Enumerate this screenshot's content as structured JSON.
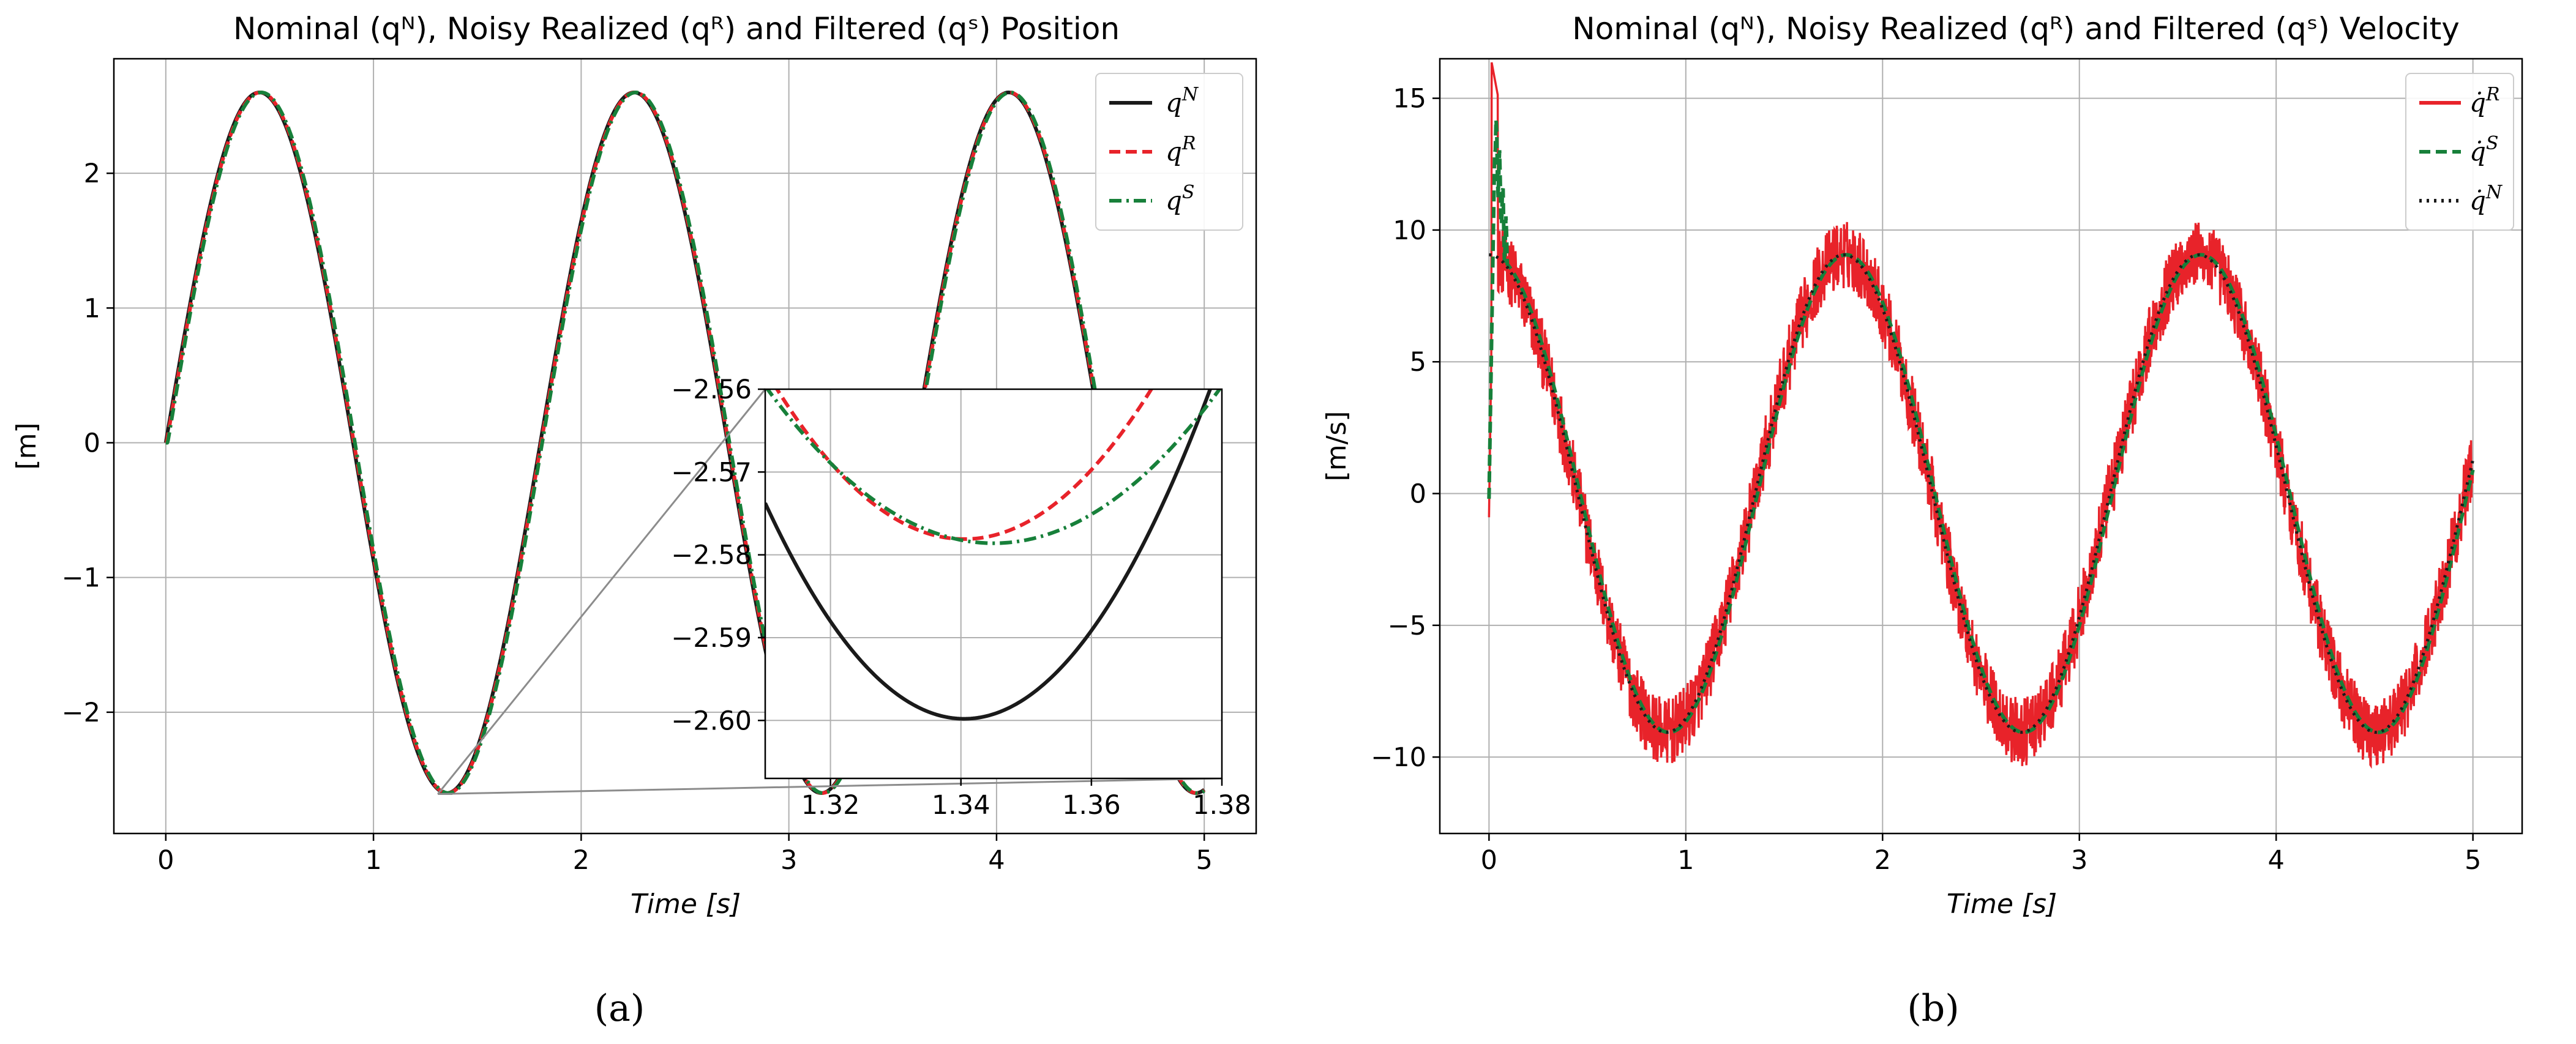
{
  "chart_data": [
    {
      "type": "line",
      "title": "Nominal (qᴺ), Noisy Realized (qᴿ) and  Filtered (qˢ) Position",
      "xlabel": "Time [s]",
      "ylabel": "[m]",
      "xlim": [
        -0.25,
        5.25
      ],
      "ylim": [
        -2.9,
        2.85
      ],
      "xticks": [
        0,
        1,
        2,
        3,
        4,
        5
      ],
      "xtick_labels": [
        "0",
        "1",
        "2",
        "3",
        "4",
        "5"
      ],
      "yticks": [
        2,
        1,
        0,
        -1,
        -2
      ],
      "ytick_labels": [
        "2",
        "1",
        "0",
        "−1",
        "−2"
      ],
      "grid": true,
      "legend_position": "top-right",
      "signal": {
        "function": "A*sin(2*pi*f*t)",
        "amplitude": 2.6,
        "frequency_hz": 0.5545,
        "t_end": 5.0
      },
      "series": [
        {
          "name": "qN",
          "label": "q",
          "sup": "N",
          "color": "#1a1a1a",
          "style": "solid"
        },
        {
          "name": "qR",
          "label": "q",
          "sup": "R",
          "color": "#e8232a",
          "style": "dashed"
        },
        {
          "name": "qS",
          "label": "q",
          "sup": "S",
          "color": "#17803a",
          "style": "dashdot"
        }
      ],
      "inset": {
        "xlim": [
          1.31,
          1.38
        ],
        "ylim": [
          -2.607,
          -2.56
        ],
        "xticks": [
          1.32,
          1.34,
          1.36,
          1.38
        ],
        "xtick_labels": [
          "1.32",
          "1.34",
          "1.36",
          "1.38"
        ],
        "yticks": [
          -2.56,
          -2.57,
          -2.58,
          -2.59,
          -2.6
        ],
        "ytick_labels": [
          "−2.56",
          "−2.57",
          "−2.58",
          "−2.59",
          "−2.60"
        ],
        "zoom_region": {
          "x": [
            1.31,
            1.38
          ],
          "y": [
            -2.607,
            -2.56
          ]
        },
        "curves": {
          "qN": {
            "vertex_x": 1.3405,
            "vertex_y": -2.5998,
            "curvature": 28.0
          },
          "qR": {
            "vertex_x": 1.3405,
            "vertex_y": -2.5781,
            "curvature": 22.0
          },
          "qS": {
            "vertex_x": 1.345,
            "vertex_y": -2.5786,
            "curvature": 15.5
          }
        }
      }
    },
    {
      "type": "line",
      "title": "Nominal (qᴺ), Noisy Realized (qᴿ) and  Filtered (qˢ) Velocity",
      "xlabel": "Time [s]",
      "ylabel": "[m/s]",
      "xlim": [
        -0.25,
        5.25
      ],
      "ylim": [
        -12.9,
        16.5
      ],
      "xticks": [
        0,
        1,
        2,
        3,
        4,
        5
      ],
      "xtick_labels": [
        "0",
        "1",
        "2",
        "3",
        "4",
        "5"
      ],
      "yticks": [
        15,
        10,
        5,
        0,
        -5,
        -10
      ],
      "ytick_labels": [
        "15",
        "10",
        "5",
        "0",
        "−5",
        "−10"
      ],
      "grid": true,
      "legend_position": "top-right",
      "signal": {
        "function": "A*cos(2*pi*f*t)",
        "amplitude": 9.06,
        "frequency_hz": 0.5545,
        "t_end": 5.0,
        "noise_amplitude": 1.3,
        "initial_spike_peak": 15.3
      },
      "series": [
        {
          "name": "qRdot",
          "label": "q̇",
          "sup": "R",
          "color": "#e8232a",
          "style": "solid"
        },
        {
          "name": "qSdot",
          "label": "q̇",
          "sup": "S",
          "color": "#17803a",
          "style": "dashed"
        },
        {
          "name": "qNdot",
          "label": "q̇",
          "sup": "N",
          "color": "#1a1a1a",
          "style": "dotted"
        }
      ]
    }
  ],
  "captions": {
    "left": "(a)",
    "right": "(b)"
  }
}
